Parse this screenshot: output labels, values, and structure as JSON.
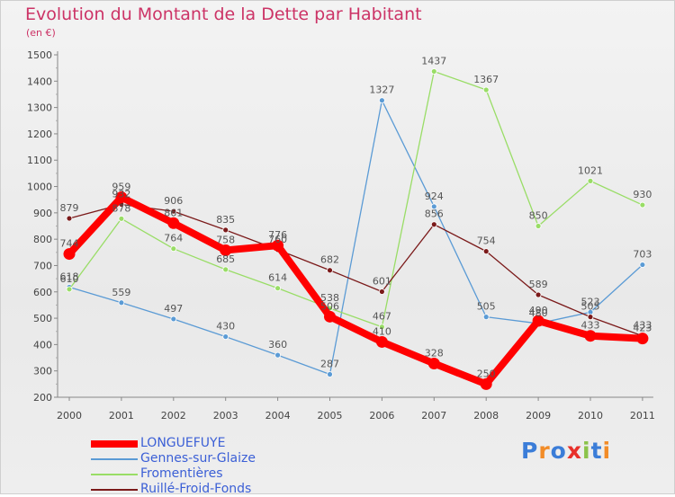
{
  "title": "Evolution du Montant de la Dette par Habitant",
  "subtitle": "(en €)",
  "logo": "Proxiti",
  "chart_data": {
    "type": "line",
    "title": "Evolution du Montant de la Dette par Habitant",
    "subtitle": "(en €)",
    "ylim": [
      200,
      1500
    ],
    "ytick_step": 100,
    "grid": false,
    "legend_position": "bottom-left",
    "categories": [
      "2000",
      "2001",
      "2002",
      "2003",
      "2004",
      "2005",
      "2006",
      "2007",
      "2008",
      "2009",
      "2010",
      "2011"
    ],
    "series": [
      {
        "name": "LONGUEFUYE",
        "color": "#ff0000",
        "values": [
          744,
          959,
          861,
          758,
          776,
          506,
          410,
          328,
          250,
          490,
          433,
          423
        ]
      },
      {
        "name": "Gennes-sur-Glaize",
        "color": "#5b9bd5",
        "values": [
          618,
          559,
          497,
          430,
          360,
          287,
          1327,
          924,
          505,
          480,
          523,
          703
        ]
      },
      {
        "name": "Fromentières",
        "color": "#99dd66",
        "values": [
          610,
          878,
          764,
          685,
          614,
          538,
          467,
          1437,
          1367,
          850,
          1021,
          930
        ]
      },
      {
        "name": "Ruillé-Froid-Fonds",
        "color": "#7b1a1a",
        "values": [
          879,
          932,
          906,
          835,
          760,
          682,
          601,
          856,
          754,
          589,
          505,
          433
        ]
      }
    ]
  }
}
